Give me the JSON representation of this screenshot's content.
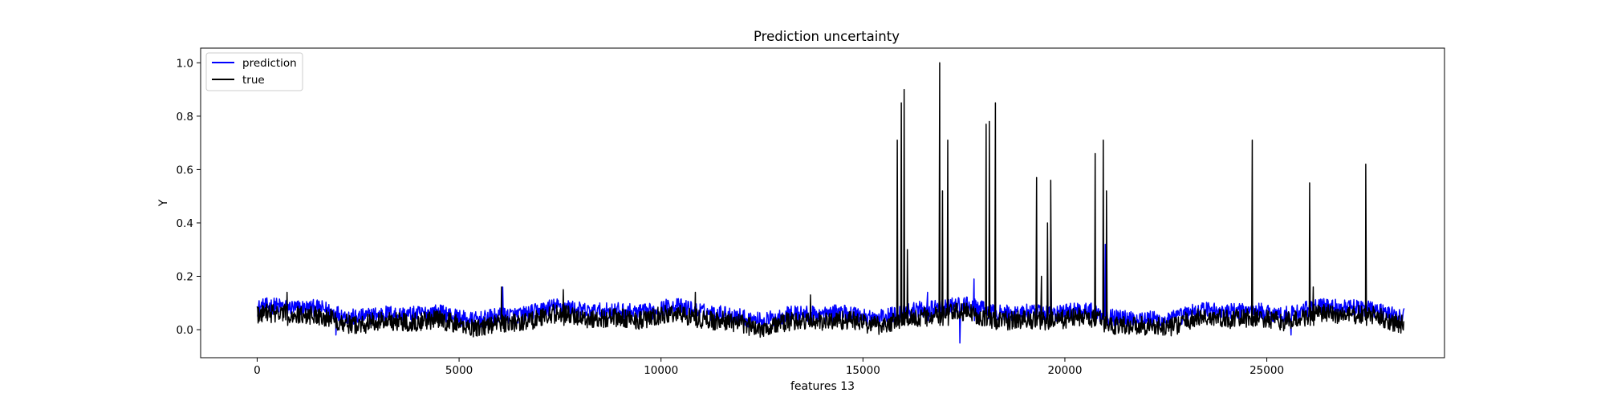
{
  "chart_data": {
    "type": "line",
    "title": "Prediction uncertainty",
    "xlabel": "features 13",
    "ylabel": "Y",
    "xlim": [
      -1400,
      29400
    ],
    "ylim": [
      -0.105,
      1.055
    ],
    "xticks": [
      0,
      5000,
      10000,
      15000,
      20000,
      25000
    ],
    "yticks": [
      0.0,
      0.2,
      0.4,
      0.6,
      0.8,
      1.0
    ],
    "ytick_labels": [
      "0.0",
      "0.2",
      "0.4",
      "0.6",
      "0.8",
      "1.0"
    ],
    "n_points": 28400,
    "legend": {
      "position": "top-left",
      "entries": [
        "prediction",
        "true"
      ]
    },
    "grid": false,
    "series": [
      {
        "name": "prediction",
        "color": "#0000ff",
        "baseline_range": [
          0.02,
          0.09
        ],
        "notable_points": [
          [
            1950,
            -0.02
          ],
          [
            6080,
            0.16
          ],
          [
            15850,
            0.21
          ],
          [
            16600,
            0.14
          ],
          [
            17400,
            -0.05
          ],
          [
            17750,
            0.19
          ],
          [
            19650,
            0.32
          ],
          [
            21000,
            0.32
          ],
          [
            25600,
            -0.02
          ],
          [
            28400,
            0.08
          ]
        ]
      },
      {
        "name": "true",
        "color": "#000000",
        "baseline_range": [
          0.0,
          0.08
        ],
        "spikes": [
          [
            740,
            0.14
          ],
          [
            6050,
            0.16
          ],
          [
            7580,
            0.15
          ],
          [
            10850,
            0.14
          ],
          [
            13700,
            0.13
          ],
          [
            15850,
            0.71
          ],
          [
            15950,
            0.85
          ],
          [
            16020,
            0.9
          ],
          [
            16100,
            0.3
          ],
          [
            16900,
            1.0
          ],
          [
            16970,
            0.52
          ],
          [
            17100,
            0.71
          ],
          [
            18050,
            0.77
          ],
          [
            18130,
            0.78
          ],
          [
            18280,
            0.85
          ],
          [
            19300,
            0.57
          ],
          [
            19420,
            0.2
          ],
          [
            19570,
            0.4
          ],
          [
            19650,
            0.56
          ],
          [
            20750,
            0.66
          ],
          [
            20950,
            0.71
          ],
          [
            21030,
            0.52
          ],
          [
            24640,
            0.71
          ],
          [
            26060,
            0.55
          ],
          [
            26150,
            0.16
          ],
          [
            27450,
            0.62
          ]
        ]
      }
    ]
  }
}
